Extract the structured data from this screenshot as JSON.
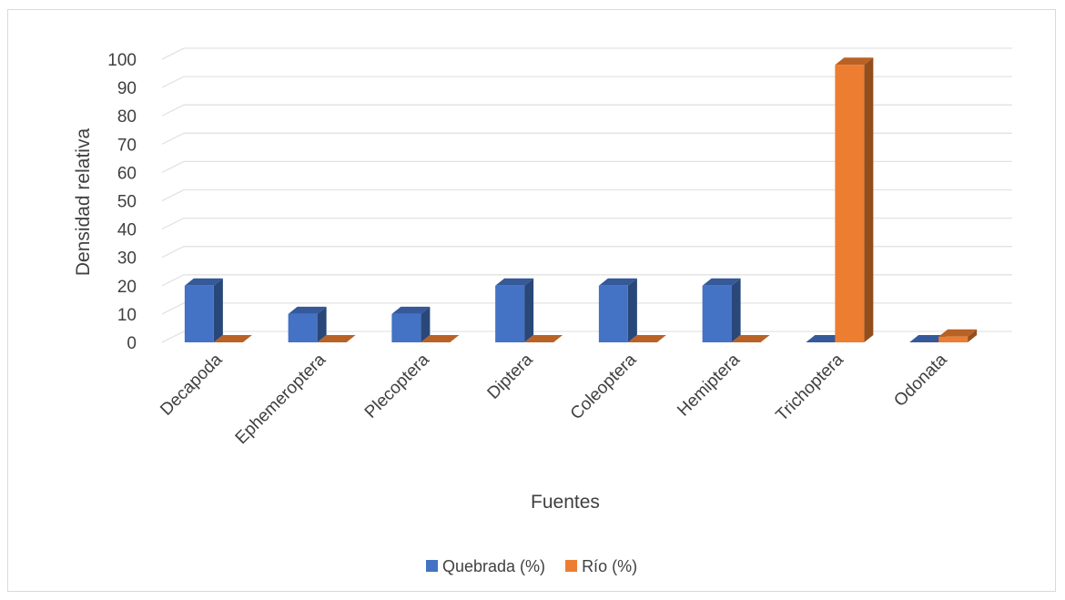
{
  "chart_data": {
    "type": "bar",
    "title": "",
    "xlabel": "Fuentes",
    "ylabel": "Densidad relativa",
    "categories": [
      "Decapoda",
      "Ephemeroptera",
      "Plecoptera",
      "Diptera",
      "Coleoptera",
      "Hemiptera",
      "Trichoptera",
      "Odonata"
    ],
    "series": [
      {
        "name": "Quebrada (%)",
        "color": "#4472c4",
        "values": [
          20,
          10,
          10,
          20,
          20,
          20,
          0,
          0
        ]
      },
      {
        "name": "Río (%)",
        "color": "#ed7d31",
        "values": [
          0,
          0,
          0,
          0,
          0,
          0,
          98,
          2
        ]
      }
    ],
    "ylim": [
      0,
      100
    ],
    "yticks": [
      0,
      10,
      20,
      30,
      40,
      50,
      60,
      70,
      80,
      90,
      100
    ],
    "grid": true,
    "style": "3d-clustered-column",
    "legend_position": "bottom"
  }
}
